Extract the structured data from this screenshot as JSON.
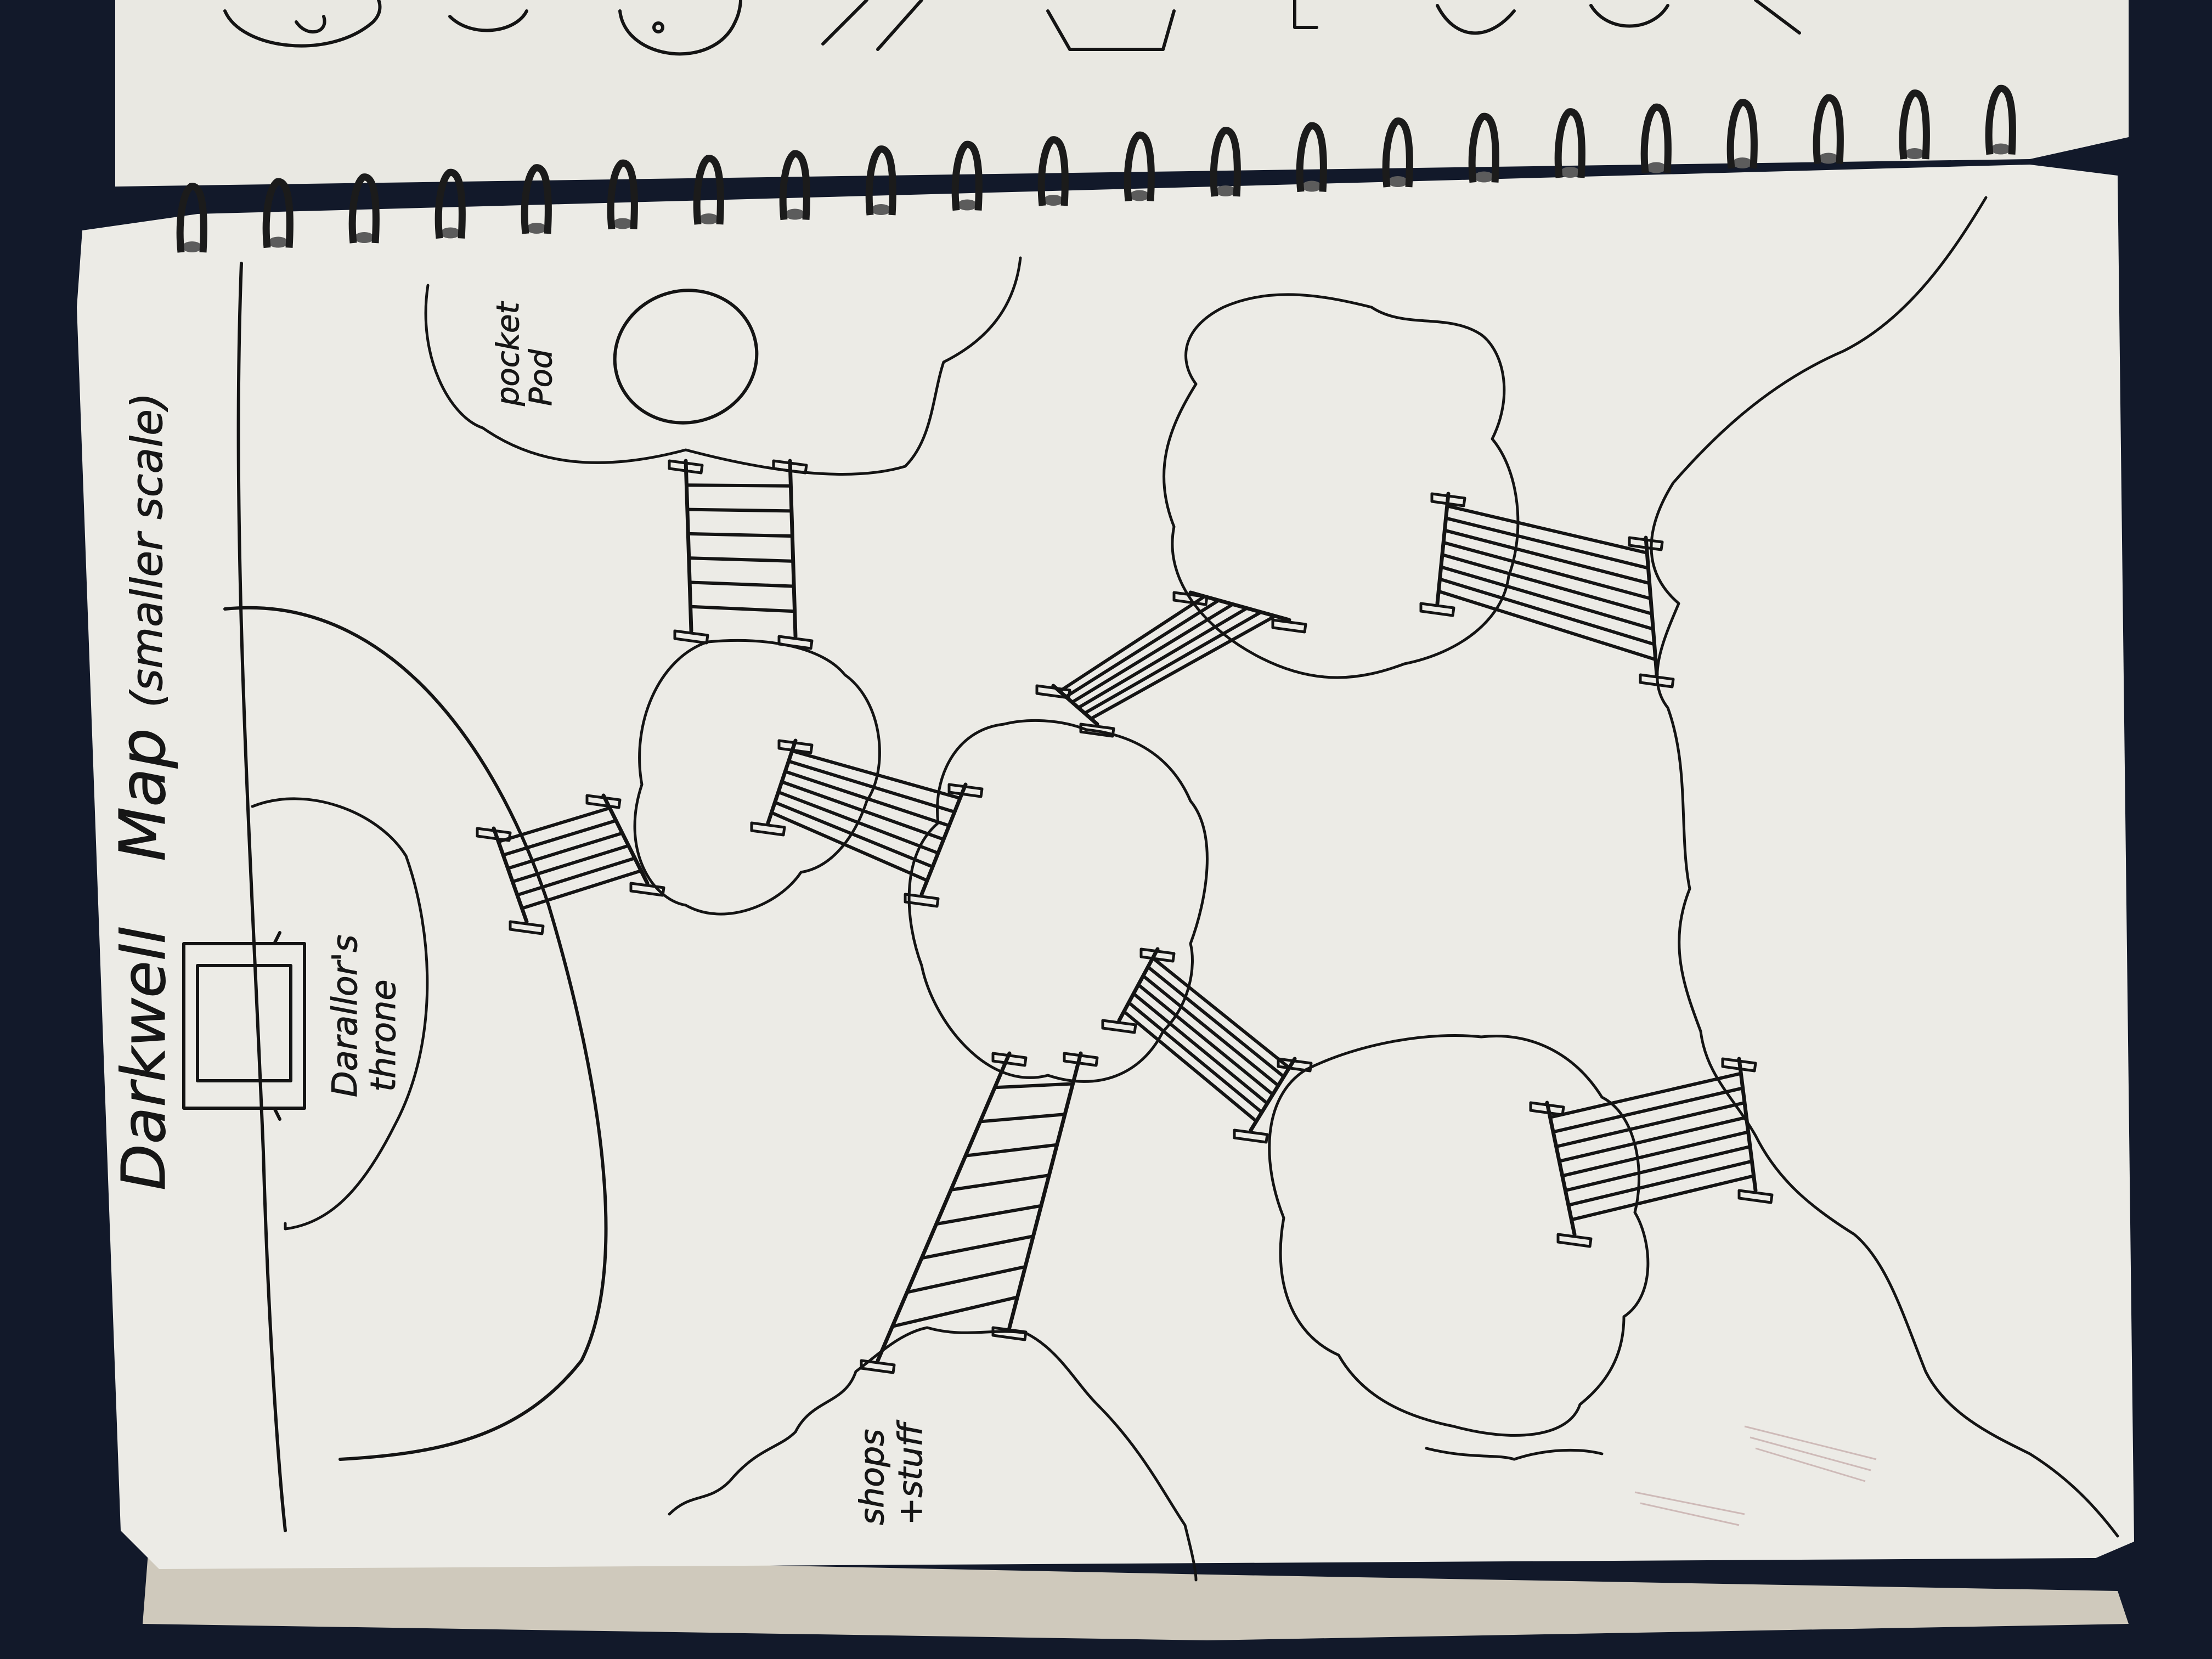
{
  "notebook": {
    "background_color": "#12192a",
    "paper_color": "#ecebe6",
    "ink_color": "#141414",
    "binding": "spiral-wire"
  },
  "map": {
    "title": "Darkwell",
    "title_word": "Map",
    "subtitle": "(smaller scale)",
    "labels": {
      "throne": [
        "Darallor's",
        "throne"
      ],
      "pocket": [
        "pocket",
        "Pod"
      ],
      "shops": [
        "shops",
        "+stuff"
      ]
    },
    "shapes": [
      "island",
      "island",
      "island",
      "island",
      "island",
      "island"
    ],
    "bridges": [
      "rope-bridge",
      "rope-bridge",
      "rope-bridge",
      "rope-bridge",
      "rope-bridge",
      "rope-bridge",
      "rope-bridge",
      "rope-bridge"
    ]
  }
}
